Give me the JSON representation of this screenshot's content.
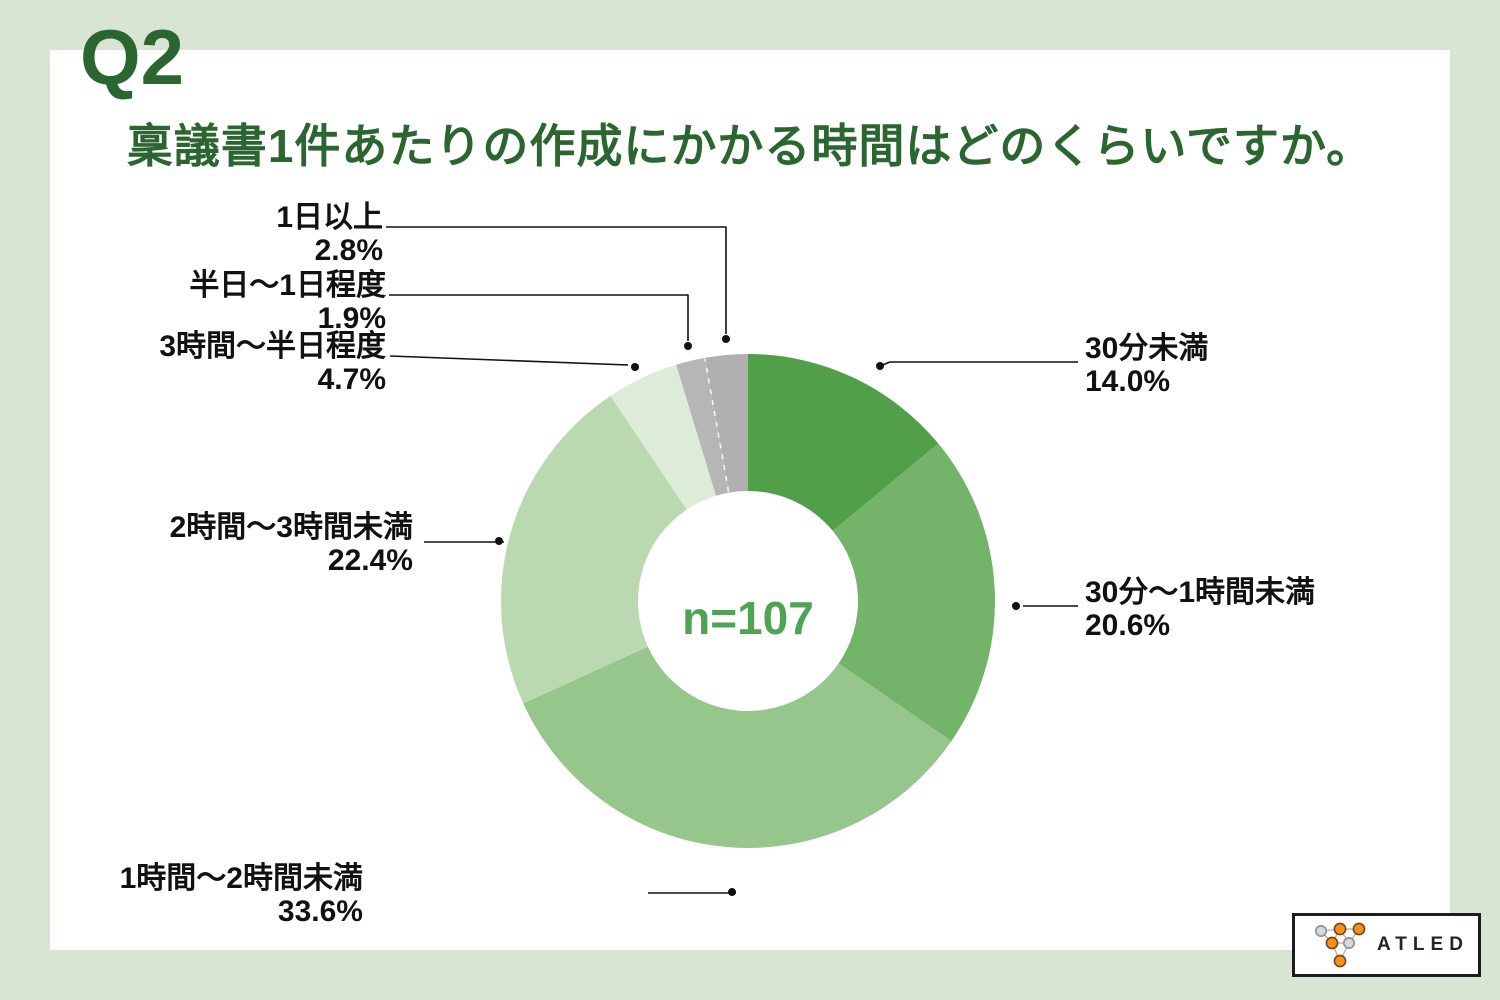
{
  "page": {
    "question_no": "Q2",
    "title": "稟議書1件あたりの作成にかかる時間はどのくらいですか。"
  },
  "chart_data": {
    "type": "pie",
    "subtype": "donut",
    "title": "稟議書1件あたりの作成にかかる時間はどのくらいですか。",
    "center_label": "n=107",
    "sample_size": 107,
    "start": "12-oclock",
    "direction": "clockwise",
    "legend_position": "callout-labels",
    "categories": [
      "30分未満",
      "30分〜1時間未満",
      "1時間〜2時間未満",
      "2時間〜3時間未満",
      "3時間〜半日程度",
      "半日〜1日程度",
      "1日以上"
    ],
    "values": [
      14.0,
      20.6,
      33.6,
      22.4,
      4.7,
      1.9,
      2.8
    ],
    "value_labels": [
      "14.0%",
      "20.6%",
      "33.6%",
      "22.4%",
      "4.7%",
      "1.9%",
      "2.8%"
    ],
    "colors": [
      "#529f4a",
      "#74b36a",
      "#97c68d",
      "#bad9b1",
      "#dcecd7",
      "#b6b6b6",
      "#b0b0b0"
    ],
    "accent_colors": {
      "title_green": "#2b6530",
      "center_label_green": "#4fa352",
      "background_frame": "#d8e5d3"
    }
  },
  "logo": {
    "text": "ATLED"
  }
}
